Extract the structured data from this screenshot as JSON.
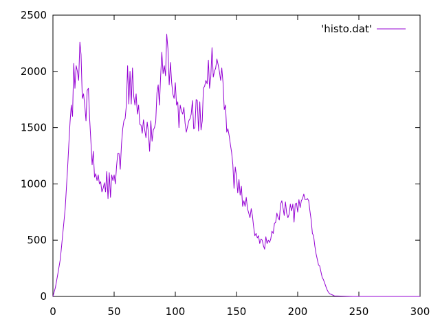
{
  "chart_data": {
    "type": "line",
    "title": "",
    "xlabel": "",
    "ylabel": "",
    "xlim": [
      0,
      300
    ],
    "ylim": [
      0,
      2500
    ],
    "xticks": [
      0,
      50,
      100,
      150,
      200,
      250,
      300
    ],
    "yticks": [
      0,
      500,
      1000,
      1500,
      2000,
      2500
    ],
    "grid": false,
    "legend_position": "top-right",
    "series": [
      {
        "name": "'histo.dat'",
        "color": "#9400d3",
        "x": [
          0,
          2,
          4,
          6,
          8,
          10,
          12,
          13,
          14,
          15,
          16,
          17,
          18,
          19,
          20,
          21,
          22,
          23,
          24,
          25,
          26,
          27,
          28,
          29,
          30,
          31,
          32,
          33,
          34,
          35,
          36,
          37,
          38,
          39,
          40,
          41,
          42,
          43,
          44,
          45,
          46,
          47,
          48,
          49,
          50,
          51,
          52,
          53,
          54,
          55,
          56,
          57,
          58,
          59,
          60,
          61,
          62,
          63,
          64,
          65,
          66,
          67,
          68,
          69,
          70,
          71,
          72,
          73,
          74,
          75,
          76,
          77,
          78,
          79,
          80,
          81,
          82,
          83,
          84,
          85,
          86,
          87,
          88,
          89,
          90,
          91,
          92,
          93,
          94,
          95,
          96,
          97,
          98,
          99,
          100,
          101,
          102,
          103,
          104,
          105,
          106,
          107,
          108,
          109,
          110,
          111,
          112,
          113,
          114,
          115,
          116,
          117,
          118,
          119,
          120,
          121,
          122,
          123,
          124,
          125,
          126,
          127,
          128,
          129,
          130,
          131,
          132,
          133,
          134,
          135,
          136,
          137,
          138,
          139,
          140,
          141,
          142,
          143,
          144,
          145,
          146,
          147,
          148,
          149,
          150,
          151,
          152,
          153,
          154,
          155,
          156,
          157,
          158,
          159,
          160,
          161,
          162,
          163,
          164,
          165,
          166,
          167,
          168,
          169,
          170,
          171,
          172,
          173,
          174,
          175,
          176,
          177,
          178,
          179,
          180,
          181,
          182,
          183,
          184,
          185,
          186,
          187,
          188,
          189,
          190,
          191,
          192,
          193,
          194,
          195,
          196,
          197,
          198,
          199,
          200,
          201,
          202,
          203,
          204,
          205,
          206,
          207,
          208,
          209,
          210,
          211,
          212,
          213,
          214,
          215,
          216,
          217,
          218,
          219,
          220,
          221,
          222,
          223,
          224,
          225,
          226,
          228,
          230,
          235,
          240,
          245,
          250,
          300
        ],
        "y": [
          0,
          80,
          200,
          330,
          550,
          780,
          1150,
          1350,
          1550,
          1700,
          1600,
          2070,
          1850,
          2050,
          2000,
          1920,
          2260,
          2150,
          1760,
          1800,
          1700,
          1560,
          1830,
          1850,
          1580,
          1380,
          1170,
          1290,
          1060,
          1090,
          1030,
          1080,
          1000,
          1020,
          930,
          960,
          1010,
          930,
          1110,
          870,
          1100,
          880,
          1080,
          1030,
          1080,
          1000,
          1160,
          1270,
          1270,
          1130,
          1350,
          1490,
          1560,
          1580,
          1700,
          2050,
          1710,
          2000,
          1710,
          2030,
          1780,
          1700,
          1800,
          1620,
          1700,
          1530,
          1520,
          1450,
          1570,
          1480,
          1410,
          1550,
          1460,
          1290,
          1560,
          1380,
          1480,
          1500,
          1550,
          1810,
          1880,
          1700,
          1950,
          2170,
          1980,
          2050,
          1960,
          2330,
          2200,
          1880,
          2080,
          1900,
          1800,
          1760,
          1900,
          1700,
          1730,
          1500,
          1700,
          1650,
          1620,
          1680,
          1540,
          1460,
          1510,
          1560,
          1580,
          1620,
          1740,
          1490,
          1500,
          1750,
          1740,
          1470,
          1730,
          1480,
          1560,
          1850,
          1870,
          1920,
          1890,
          2100,
          1850,
          1950,
          2210,
          1950,
          2000,
          2030,
          2110,
          2060,
          2000,
          1920,
          2030,
          1900,
          1660,
          1700,
          1460,
          1490,
          1430,
          1350,
          1280,
          1170,
          960,
          1150,
          1070,
          920,
          1040,
          900,
          980,
          800,
          850,
          800,
          880,
          780,
          740,
          700,
          780,
          720,
          620,
          540,
          560,
          520,
          540,
          470,
          510,
          500,
          450,
          420,
          530,
          470,
          500,
          480,
          510,
          580,
          560,
          650,
          660,
          740,
          700,
          680,
          820,
          850,
          790,
          720,
          840,
          740,
          700,
          730,
          820,
          760,
          820,
          660,
          820,
          830,
          750,
          860,
          790,
          850,
          870,
          910,
          860,
          860,
          870,
          850,
          760,
          680,
          560,
          540,
          450,
          380,
          330,
          280,
          270,
          220,
          170,
          150,
          120,
          90,
          60,
          40,
          25,
          15,
          5,
          3,
          1,
          0,
          0,
          0
        ]
      }
    ]
  }
}
